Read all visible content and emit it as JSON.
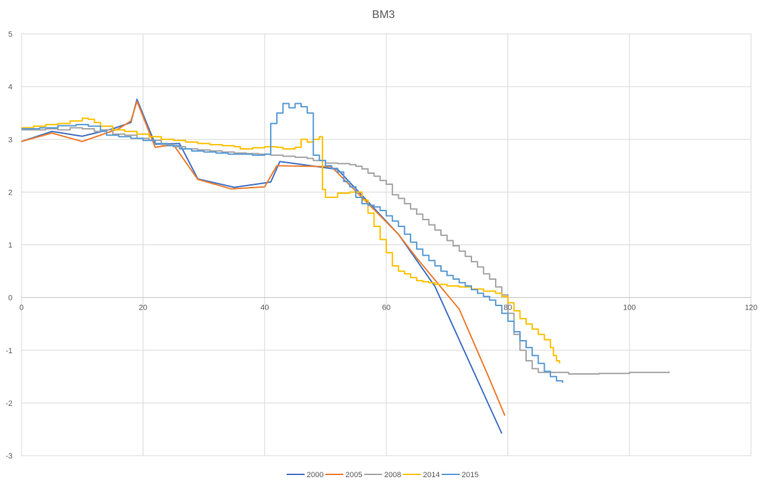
{
  "chart_data": {
    "type": "line",
    "title": "BM3",
    "xlabel": "",
    "ylabel": "",
    "xlim": [
      0,
      120
    ],
    "ylim": [
      -3,
      5
    ],
    "x_ticks": [
      0,
      20,
      40,
      60,
      80,
      100,
      120
    ],
    "y_ticks": [
      5,
      4,
      3,
      2,
      1,
      0,
      -1,
      -2,
      -3
    ],
    "grid": true,
    "legend_position": "bottom",
    "series": [
      {
        "name": "2000",
        "color": "#4472C4",
        "step": false,
        "points": [
          [
            0,
            2.96
          ],
          [
            5,
            3.15
          ],
          [
            10,
            3.06
          ],
          [
            15,
            3.2
          ],
          [
            18,
            3.32
          ],
          [
            19,
            3.76
          ],
          [
            22,
            2.91
          ],
          [
            26,
            2.92
          ],
          [
            29,
            2.25
          ],
          [
            35,
            2.09
          ],
          [
            41,
            2.19
          ],
          [
            42.5,
            2.58
          ],
          [
            52,
            2.43
          ],
          [
            62,
            1.2
          ],
          [
            68,
            0.21
          ],
          [
            79,
            -2.58
          ]
        ]
      },
      {
        "name": "2005",
        "color": "#ED7D31",
        "step": false,
        "points": [
          [
            0,
            2.96
          ],
          [
            5,
            3.12
          ],
          [
            10,
            2.96
          ],
          [
            16,
            3.2
          ],
          [
            18,
            3.35
          ],
          [
            19,
            3.72
          ],
          [
            22,
            2.85
          ],
          [
            25,
            2.9
          ],
          [
            29,
            2.24
          ],
          [
            34.5,
            2.06
          ],
          [
            40,
            2.1
          ],
          [
            42,
            2.5
          ],
          [
            51,
            2.48
          ],
          [
            62,
            1.2
          ],
          [
            65,
            0.75
          ],
          [
            72,
            -0.22
          ],
          [
            77,
            -1.55
          ],
          [
            79.5,
            -2.24
          ]
        ]
      },
      {
        "name": "2008",
        "color": "#A5A5A5",
        "step": true,
        "points": [
          [
            0,
            3.18
          ],
          [
            4,
            3.2
          ],
          [
            6,
            3.18
          ],
          [
            8,
            3.22
          ],
          [
            10,
            3.2
          ],
          [
            12,
            3.15
          ],
          [
            13,
            3.18
          ],
          [
            15,
            3.1
          ],
          [
            17,
            3.08
          ],
          [
            19,
            3.02
          ],
          [
            21,
            2.98
          ],
          [
            23,
            2.9
          ],
          [
            25,
            2.86
          ],
          [
            27,
            2.82
          ],
          [
            29,
            2.8
          ],
          [
            31,
            2.78
          ],
          [
            33,
            2.76
          ],
          [
            35,
            2.74
          ],
          [
            37,
            2.73
          ],
          [
            39,
            2.72
          ],
          [
            41,
            2.7
          ],
          [
            43,
            2.68
          ],
          [
            45,
            2.66
          ],
          [
            47,
            2.64
          ],
          [
            48,
            2.6
          ],
          [
            50,
            2.55
          ],
          [
            52,
            2.54
          ],
          [
            54,
            2.52
          ],
          [
            55,
            2.49
          ],
          [
            56,
            2.44
          ],
          [
            57,
            2.36
          ],
          [
            58,
            2.3
          ],
          [
            59,
            2.22
          ],
          [
            60,
            2.15
          ],
          [
            61,
            1.95
          ],
          [
            62,
            1.88
          ],
          [
            63,
            1.78
          ],
          [
            64,
            1.68
          ],
          [
            65,
            1.58
          ],
          [
            66,
            1.48
          ],
          [
            67,
            1.38
          ],
          [
            68,
            1.28
          ],
          [
            69,
            1.18
          ],
          [
            70,
            1.08
          ],
          [
            71,
            0.98
          ],
          [
            72,
            0.88
          ],
          [
            73,
            0.78
          ],
          [
            74,
            0.68
          ],
          [
            75,
            0.58
          ],
          [
            76,
            0.45
          ],
          [
            77,
            0.35
          ],
          [
            78,
            0.2
          ],
          [
            79,
            0.05
          ],
          [
            80,
            -0.3
          ],
          [
            81,
            -0.7
          ],
          [
            82,
            -1.0
          ],
          [
            83,
            -1.2
          ],
          [
            84,
            -1.35
          ],
          [
            85,
            -1.42
          ],
          [
            90,
            -1.45
          ],
          [
            95,
            -1.44
          ],
          [
            100,
            -1.42
          ],
          [
            106.5,
            -1.4
          ]
        ]
      },
      {
        "name": "2014",
        "color": "#FFC000",
        "step": true,
        "points": [
          [
            0,
            3.22
          ],
          [
            2,
            3.25
          ],
          [
            4,
            3.28
          ],
          [
            6,
            3.3
          ],
          [
            8,
            3.35
          ],
          [
            10,
            3.4
          ],
          [
            11,
            3.38
          ],
          [
            12,
            3.32
          ],
          [
            13,
            3.25
          ],
          [
            15,
            3.18
          ],
          [
            17,
            3.15
          ],
          [
            19,
            3.1
          ],
          [
            21,
            3.05
          ],
          [
            23,
            3.0
          ],
          [
            25,
            2.98
          ],
          [
            27,
            2.95
          ],
          [
            29,
            2.92
          ],
          [
            31,
            2.9
          ],
          [
            33,
            2.88
          ],
          [
            35,
            2.86
          ],
          [
            36,
            2.82
          ],
          [
            38,
            2.84
          ],
          [
            40,
            2.86
          ],
          [
            42,
            2.85
          ],
          [
            43,
            2.82
          ],
          [
            45,
            2.85
          ],
          [
            46,
            3.0
          ],
          [
            47,
            2.95
          ],
          [
            48,
            3.0
          ],
          [
            49,
            3.05
          ],
          [
            49.5,
            2.05
          ],
          [
            50,
            1.9
          ],
          [
            52,
            1.98
          ],
          [
            54,
            2.0
          ],
          [
            56,
            1.85
          ],
          [
            57,
            1.6
          ],
          [
            58,
            1.35
          ],
          [
            59,
            1.1
          ],
          [
            60,
            0.85
          ],
          [
            61,
            0.6
          ],
          [
            62,
            0.5
          ],
          [
            63,
            0.45
          ],
          [
            64,
            0.38
          ],
          [
            65,
            0.32
          ],
          [
            66,
            0.3
          ],
          [
            67,
            0.28
          ],
          [
            68,
            0.25
          ],
          [
            70,
            0.22
          ],
          [
            72,
            0.2
          ],
          [
            74,
            0.16
          ],
          [
            76,
            0.12
          ],
          [
            78,
            0.08
          ],
          [
            79,
            0.02
          ],
          [
            80,
            -0.1
          ],
          [
            81,
            -0.25
          ],
          [
            82,
            -0.4
          ],
          [
            83,
            -0.5
          ],
          [
            84,
            -0.6
          ],
          [
            85,
            -0.7
          ],
          [
            86,
            -0.8
          ],
          [
            87,
            -0.95
          ],
          [
            87.5,
            -1.1
          ],
          [
            88,
            -1.2
          ],
          [
            88.5,
            -1.25
          ]
        ]
      },
      {
        "name": "2015",
        "color": "#5B9BD5",
        "step": true,
        "points": [
          [
            0,
            3.2
          ],
          [
            3,
            3.22
          ],
          [
            6,
            3.26
          ],
          [
            9,
            3.28
          ],
          [
            11,
            3.25
          ],
          [
            13,
            3.15
          ],
          [
            14,
            3.08
          ],
          [
            16,
            3.05
          ],
          [
            18,
            3.02
          ],
          [
            20,
            2.98
          ],
          [
            22,
            2.92
          ],
          [
            24,
            2.88
          ],
          [
            26,
            2.82
          ],
          [
            28,
            2.78
          ],
          [
            30,
            2.76
          ],
          [
            32,
            2.74
          ],
          [
            34,
            2.72
          ],
          [
            36,
            2.72
          ],
          [
            38,
            2.7
          ],
          [
            40,
            2.72
          ],
          [
            41,
            3.3
          ],
          [
            42,
            3.5
          ],
          [
            43,
            3.68
          ],
          [
            44,
            3.6
          ],
          [
            45,
            3.68
          ],
          [
            46,
            3.62
          ],
          [
            47,
            3.5
          ],
          [
            48,
            2.7
          ],
          [
            49,
            2.6
          ],
          [
            50,
            2.5
          ],
          [
            51,
            2.45
          ],
          [
            52,
            2.38
          ],
          [
            53,
            2.2
          ],
          [
            54,
            2.1
          ],
          [
            55,
            1.9
          ],
          [
            56,
            1.78
          ],
          [
            57,
            1.75
          ],
          [
            58,
            1.72
          ],
          [
            59,
            1.65
          ],
          [
            60,
            1.55
          ],
          [
            61,
            1.45
          ],
          [
            62,
            1.35
          ],
          [
            63,
            1.2
          ],
          [
            64,
            1.05
          ],
          [
            65,
            0.92
          ],
          [
            66,
            0.8
          ],
          [
            67,
            0.7
          ],
          [
            68,
            0.6
          ],
          [
            69,
            0.5
          ],
          [
            70,
            0.42
          ],
          [
            71,
            0.35
          ],
          [
            72,
            0.28
          ],
          [
            73,
            0.22
          ],
          [
            74,
            0.15
          ],
          [
            75,
            0.08
          ],
          [
            76,
            0.02
          ],
          [
            77,
            -0.05
          ],
          [
            78,
            -0.15
          ],
          [
            79,
            -0.3
          ],
          [
            80,
            -0.45
          ],
          [
            81,
            -0.65
          ],
          [
            82,
            -0.82
          ],
          [
            83,
            -0.95
          ],
          [
            84,
            -1.1
          ],
          [
            85,
            -1.25
          ],
          [
            86,
            -1.4
          ],
          [
            87,
            -1.5
          ],
          [
            88,
            -1.58
          ],
          [
            89,
            -1.62
          ]
        ]
      }
    ]
  }
}
